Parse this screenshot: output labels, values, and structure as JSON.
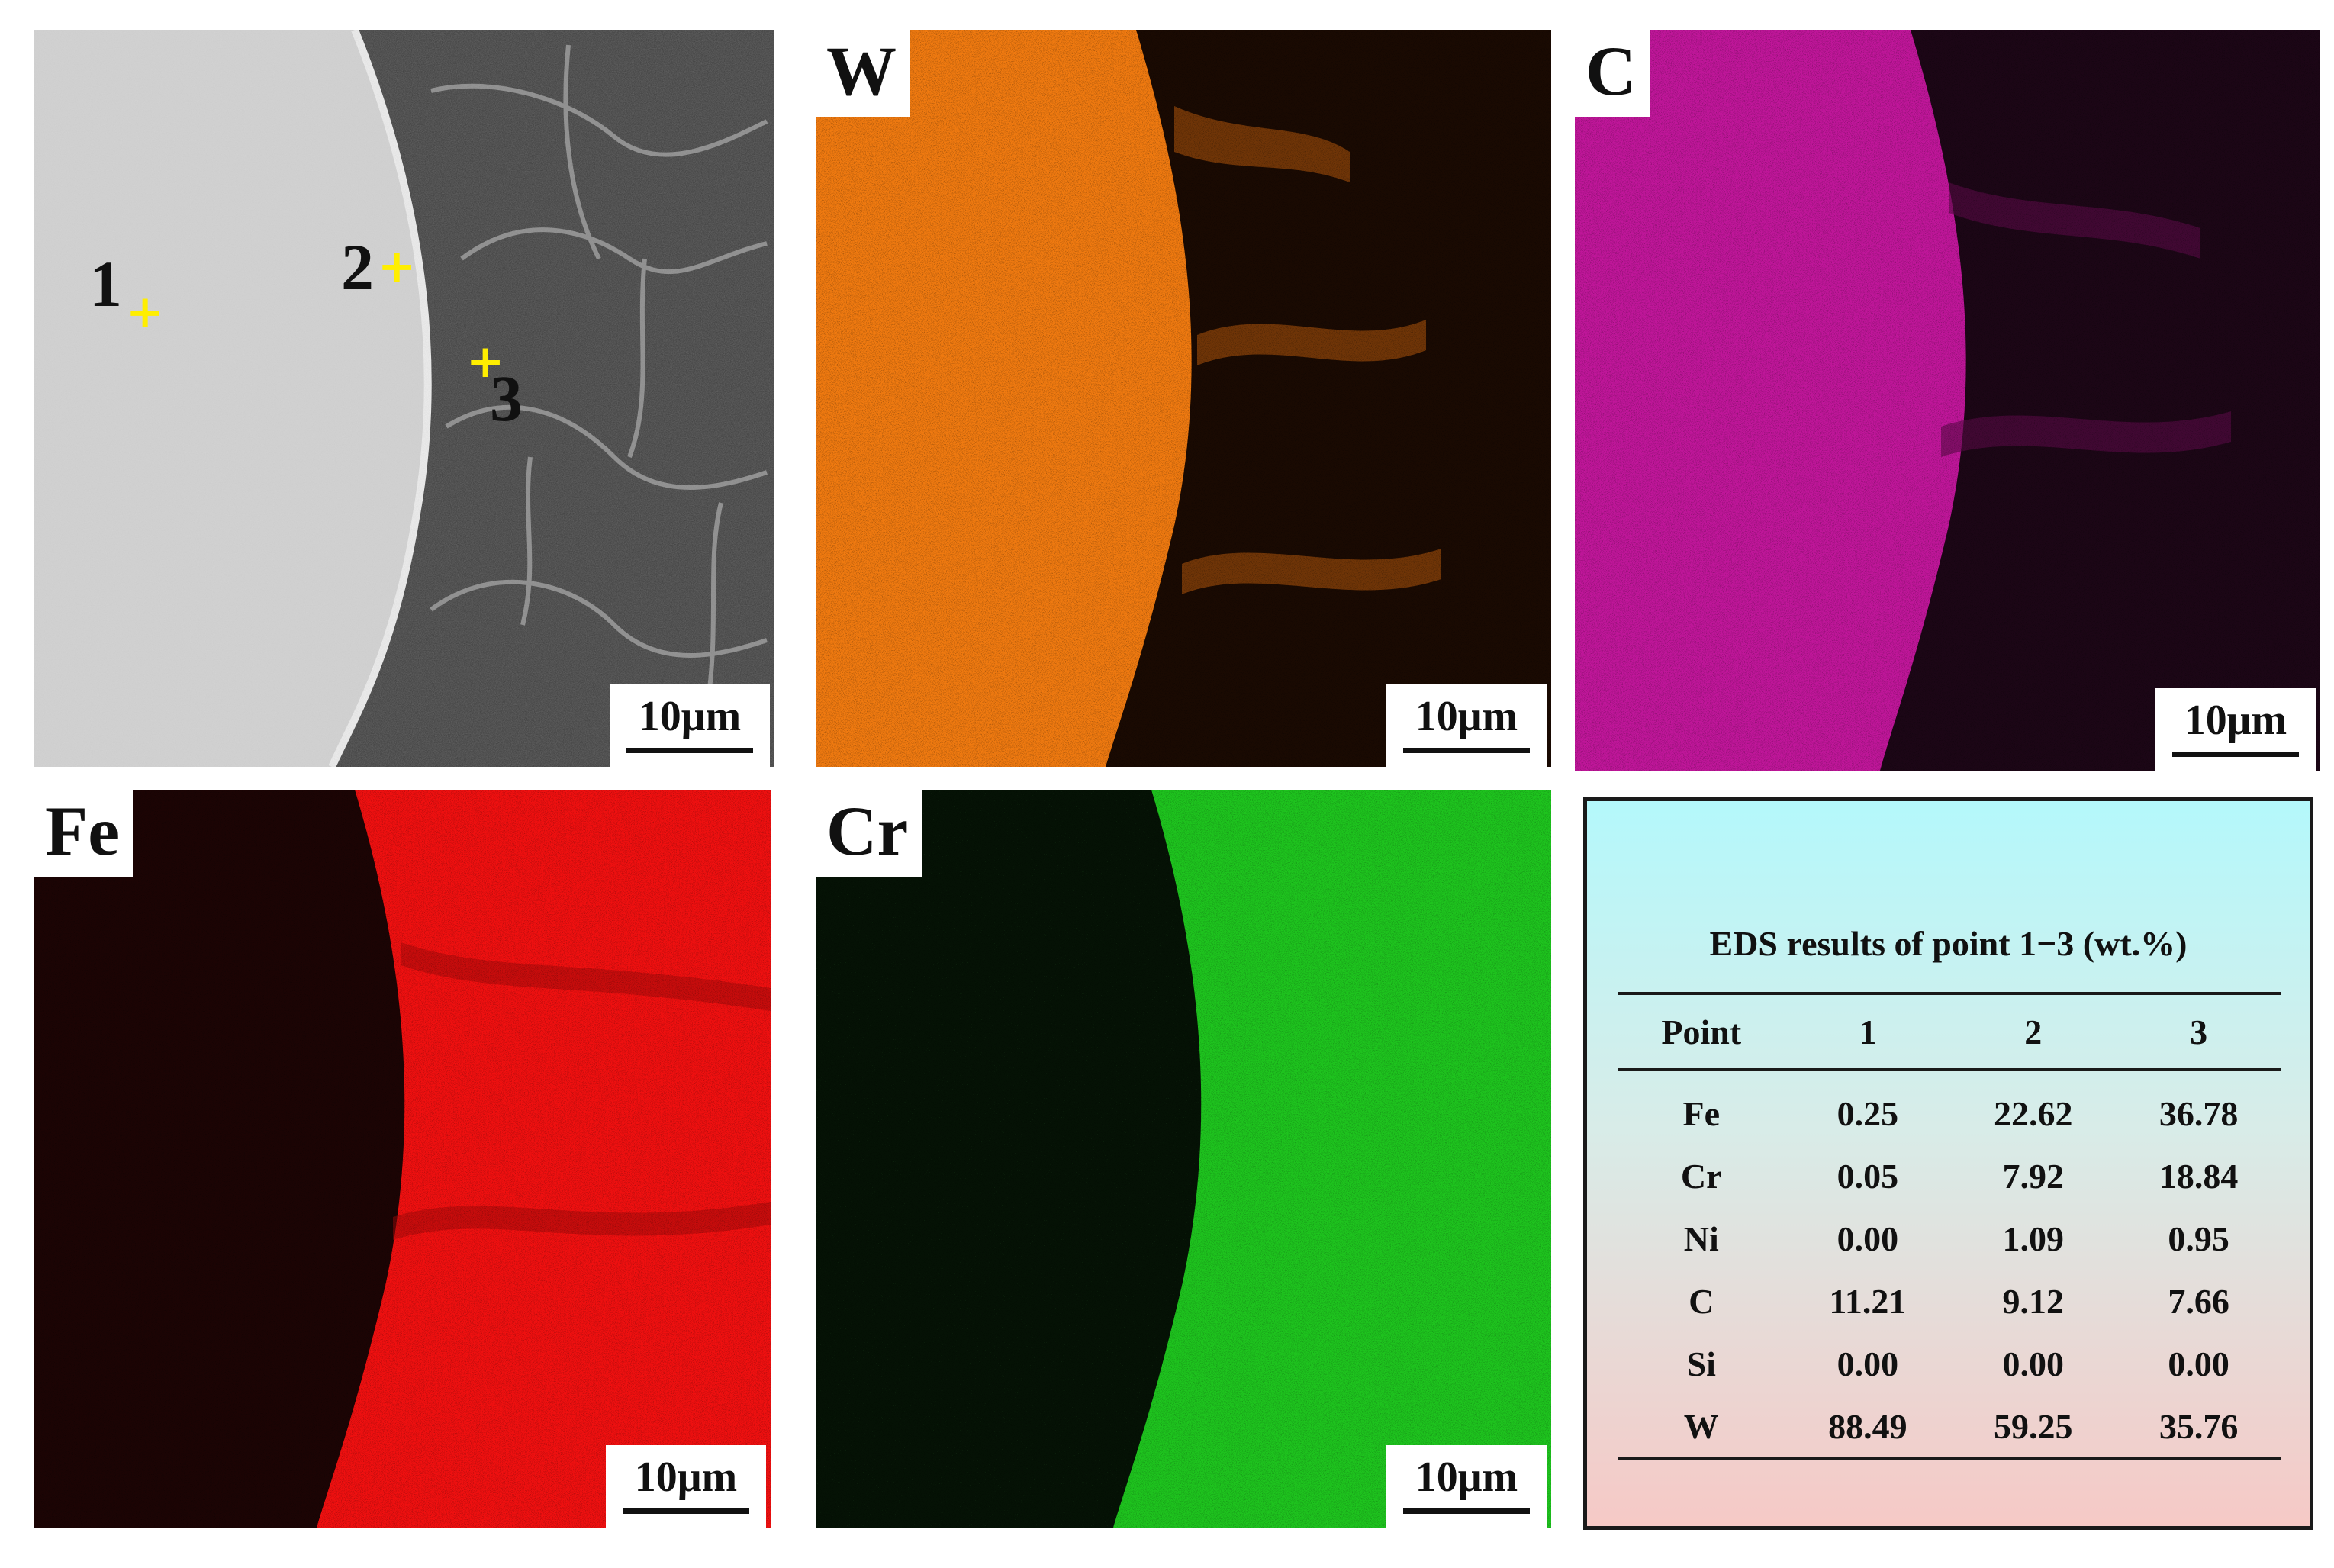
{
  "panels": [
    {
      "id": "sem",
      "label": "",
      "scale": "10μm"
    },
    {
      "id": "w",
      "label": "W",
      "scale": "10μm",
      "color": "#f07a10"
    },
    {
      "id": "c",
      "label": "C",
      "scale": "10μm",
      "color": "#c0169a"
    },
    {
      "id": "fe",
      "label": "Fe",
      "scale": "10μm",
      "color": "#f01010"
    },
    {
      "id": "cr",
      "label": "Cr",
      "scale": "10μm",
      "color": "#1ec41e"
    }
  ],
  "points": [
    {
      "label": "1",
      "marker": "+"
    },
    {
      "label": "2",
      "marker": "+"
    },
    {
      "label": "3",
      "marker": "+"
    }
  ],
  "eds": {
    "title": "EDS results of point 1−3 (wt.%)",
    "columns": [
      "Point",
      "1",
      "2",
      "3"
    ],
    "rows": [
      [
        "Fe",
        "0.25",
        "22.62",
        "36.78"
      ],
      [
        "Cr",
        "0.05",
        "7.92",
        "18.84"
      ],
      [
        "Ni",
        "0.00",
        "1.09",
        "0.95"
      ],
      [
        "C",
        "11.21",
        "9.12",
        "7.66"
      ],
      [
        "Si",
        "0.00",
        "0.00",
        "0.00"
      ],
      [
        "W",
        "88.49",
        "59.25",
        "35.76"
      ]
    ]
  }
}
